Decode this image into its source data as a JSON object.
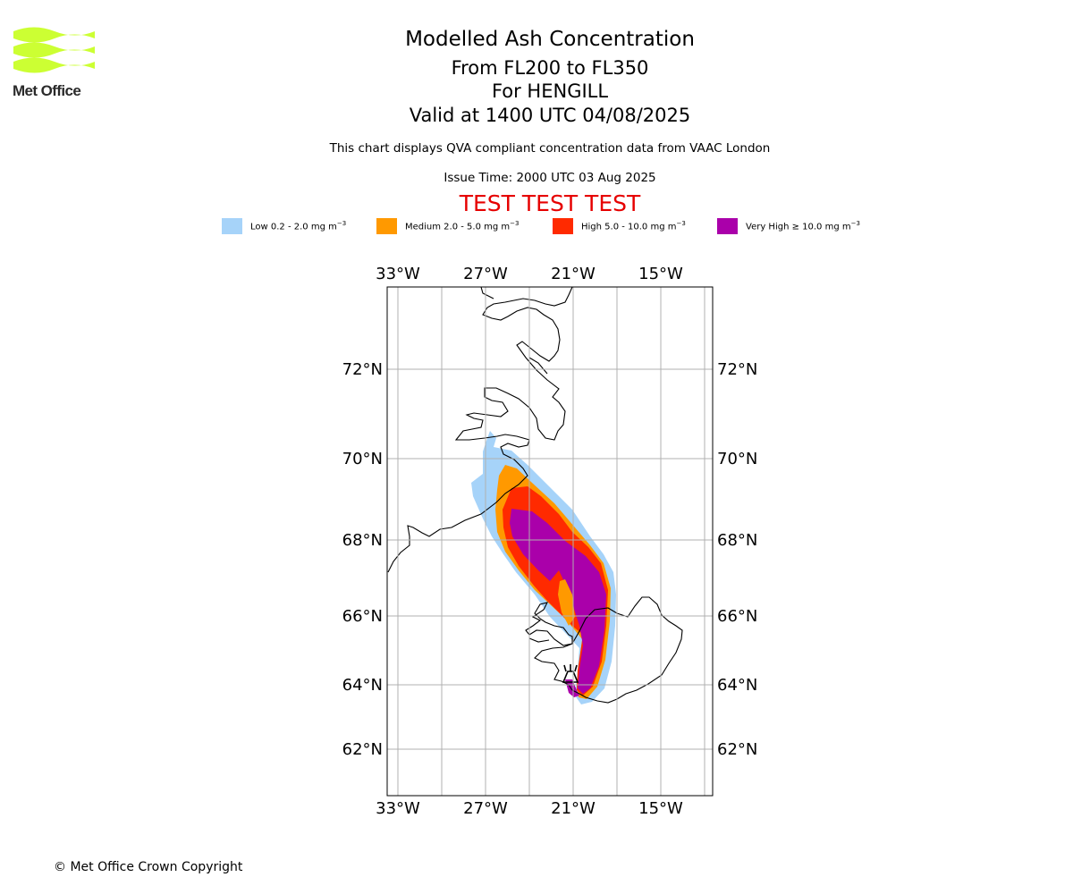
{
  "logo": {
    "text": "Met Office",
    "icon": "met-office-wave-logo",
    "color": "#ccff33"
  },
  "header": {
    "title": "Modelled Ash Concentration",
    "levels": "From FL200 to FL350",
    "volcano": "For HENGILL",
    "valid": "Valid at 1400 UTC 04/08/2025",
    "note": "This chart displays QVA compliant concentration data from VAAC London",
    "issue": "Issue Time: 2000 UTC 03 Aug 2025",
    "test_banner": "TEST TEST TEST"
  },
  "legend": [
    {
      "label": "Low 0.2 - 2.0 mg m",
      "unit_exp": "−3",
      "color": "#a6d3f9"
    },
    {
      "label": "Medium 2.0 - 5.0 mg m",
      "unit_exp": "−3",
      "color": "#ff9900"
    },
    {
      "label": "High 5.0 - 10.0 mg m",
      "unit_exp": "−3",
      "color": "#ff2a00"
    },
    {
      "label": "Very High  ≥  10.0 mg m",
      "unit_exp": "−3",
      "color": "#aa00aa"
    }
  ],
  "map": {
    "lon_ticks": [
      "33°W",
      "27°W",
      "21°W",
      "15°W"
    ],
    "lat_ticks": [
      "72°N",
      "70°N",
      "68°N",
      "66°N",
      "64°N",
      "62°N"
    ],
    "volcano_marker": "volcano-icon",
    "grid": true
  },
  "footer": {
    "copyright": "© Met Office Crown Copyright"
  }
}
